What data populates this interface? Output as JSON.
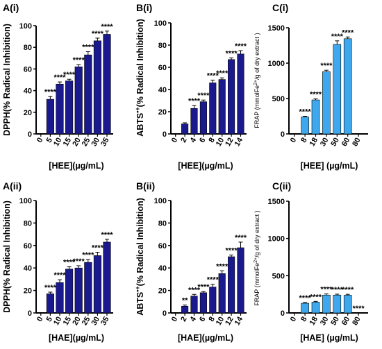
{
  "colors": {
    "hee_bar": "#1a1a8e",
    "hae_bar": "#1a1a8e",
    "frap_bar": "#3da8ee",
    "axis": "#000000"
  },
  "chart_data": [
    {
      "id": "a1",
      "panel_label": "A(i)",
      "type": "bar",
      "ylabel": "DPPH(% Radical Inhibition)",
      "xlabel": "[HEE](µg/mL)",
      "categories": [
        "0",
        "5",
        "10",
        "15",
        "20",
        "25",
        "30",
        "35"
      ],
      "values": [
        0,
        32,
        46,
        49,
        62,
        73,
        86,
        92
      ],
      "errors": [
        0,
        2.5,
        2,
        1.5,
        2,
        3,
        2.5,
        3
      ],
      "significance": [
        "",
        "****",
        "****",
        "****",
        "****",
        "****",
        "****",
        "****"
      ],
      "ylim": [
        0,
        100
      ],
      "yticks": [
        0,
        20,
        40,
        60,
        80,
        100
      ],
      "color": "#1a1a8e"
    },
    {
      "id": "b1",
      "panel_label": "B(i)",
      "type": "bar",
      "ylabel": "ABTS•+(% Radical Inhibition)",
      "xlabel": "[HEE](µg/mL)",
      "categories": [
        "0",
        "2",
        "4",
        "6",
        "8",
        "10",
        "12",
        "14"
      ],
      "values": [
        0,
        9,
        23,
        29,
        46,
        49,
        67,
        72
      ],
      "errors": [
        0,
        1,
        2.5,
        1.5,
        2.5,
        1.5,
        1.5,
        3
      ],
      "significance": [
        "",
        "",
        "****",
        "****",
        "****",
        "****",
        "****",
        "****"
      ],
      "ylim": [
        0,
        100
      ],
      "yticks": [
        0,
        20,
        40,
        60,
        80,
        100
      ],
      "color": "#1a1a8e"
    },
    {
      "id": "c1",
      "panel_label": "C(i)",
      "type": "bar",
      "ylabel": "FRAP (mmolFe2+/g of dry extract )",
      "xlabel": "[HEE]  (µg/mL)",
      "categories": [
        "0",
        "8",
        "18",
        "30",
        "50",
        "60",
        "80"
      ],
      "values": [
        0,
        240,
        480,
        880,
        1265,
        1345,
        0
      ],
      "errors": [
        0,
        10,
        15,
        20,
        50,
        25,
        0
      ],
      "significance": [
        "",
        "****",
        "****",
        "****",
        "****",
        "****",
        ""
      ],
      "ylim": [
        0,
        1500
      ],
      "yticks": [
        0,
        500,
        1000,
        1500
      ],
      "color": "#3da8ee"
    },
    {
      "id": "a2",
      "panel_label": "A(ii)",
      "type": "bar",
      "ylabel": "DPPH(% Radical Inhibition)",
      "xlabel": "[HAE](µg/mL)",
      "categories": [
        "0",
        "5",
        "10",
        "15",
        "20",
        "25",
        "30",
        "35"
      ],
      "values": [
        0,
        17,
        27,
        39,
        40,
        45,
        51,
        63
      ],
      "errors": [
        0,
        1.5,
        2.5,
        2,
        2,
        2.5,
        3,
        2.5
      ],
      "significance": [
        "",
        "****",
        "****",
        "****",
        "****",
        "****",
        "****",
        "****"
      ],
      "ylim": [
        0,
        100
      ],
      "yticks": [
        0,
        20,
        40,
        60,
        80,
        100
      ],
      "color": "#1a1a8e"
    },
    {
      "id": "b2",
      "panel_label": "B(ii)",
      "type": "bar",
      "ylabel": "ABTS•+(% Radical Inhibition)",
      "xlabel": "[HAE](µg/mL)",
      "categories": [
        "0",
        "2",
        "4",
        "6",
        "8",
        "10",
        "12",
        "14"
      ],
      "values": [
        0,
        6,
        15,
        18,
        23,
        35,
        50,
        58
      ],
      "errors": [
        0,
        1,
        1.5,
        1,
        2.5,
        2.5,
        1.5,
        5
      ],
      "significance": [
        "",
        "**",
        "****",
        "****",
        "****",
        "****",
        "****",
        "****"
      ],
      "ylim": [
        0,
        100
      ],
      "yticks": [
        0,
        20,
        40,
        60,
        80,
        100
      ],
      "color": "#1a1a8e"
    },
    {
      "id": "c2",
      "panel_label": "C(ii)",
      "type": "bar",
      "ylabel": "FRAP (mmolFe2+/g of dry extract )",
      "xlabel": "[HAE]  (µg/mL)",
      "categories": [
        "0",
        "8",
        "18",
        "30",
        "50",
        "60",
        "80"
      ],
      "values": [
        0,
        130,
        145,
        240,
        240,
        238,
        0
      ],
      "errors": [
        0,
        10,
        10,
        15,
        12,
        12,
        0
      ],
      "significance": [
        "",
        "****",
        "****",
        "****",
        "****",
        "****",
        "****"
      ],
      "ylim": [
        0,
        1500
      ],
      "yticks": [
        0,
        500,
        1000,
        1500
      ],
      "color": "#3da8ee"
    }
  ]
}
